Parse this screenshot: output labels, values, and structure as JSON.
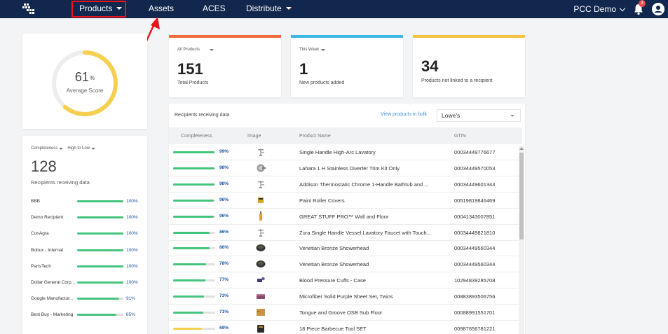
{
  "nav": {
    "items": [
      {
        "label": "Products",
        "dropdown": true
      },
      {
        "label": "Assets",
        "dropdown": false
      },
      {
        "label": "ACES",
        "dropdown": false
      },
      {
        "label": "Distribute",
        "dropdown": true
      }
    ],
    "account_label": "PCC Demo",
    "notification_count": "3",
    "colors": {
      "bar": "#12274d",
      "highlight": "#e8141a"
    }
  },
  "score": {
    "value": "61",
    "unit": "%",
    "label": "Average Score",
    "fraction": 0.61,
    "color": "#f5cf4d"
  },
  "recipients": {
    "sort_field": "Completeness",
    "sort_order": "High to Low",
    "count": "128",
    "count_label": "Recipients receiving data",
    "rows": [
      {
        "name": "BBB",
        "pct": "100%",
        "fraction": 1.0
      },
      {
        "name": "Demo Recipient",
        "pct": "100%",
        "fraction": 1.0
      },
      {
        "name": "ConAgra",
        "pct": "100%",
        "fraction": 1.0
      },
      {
        "name": "Bobux - Internal",
        "pct": "100%",
        "fraction": 1.0
      },
      {
        "name": "PartsTech",
        "pct": "100%",
        "fraction": 1.0
      },
      {
        "name": "Dollar General Corp...",
        "pct": "100%",
        "fraction": 1.0
      },
      {
        "name": "Google Manufactur...",
        "pct": "91%",
        "fraction": 0.91
      },
      {
        "name": "Best Buy - Marketing",
        "pct": "85%",
        "fraction": 0.85
      }
    ]
  },
  "stats": [
    {
      "dropdown": "All Products",
      "value": "151",
      "label": "Total Products",
      "color": "#f26b3a"
    },
    {
      "dropdown": "This Week",
      "value": "1",
      "label": "New products added",
      "color": "#3db9e6"
    },
    {
      "dropdown": "",
      "value": "34",
      "label": "Products not linked to a recipient",
      "color": "#f5c242"
    }
  ],
  "table": {
    "title": "Recipients receiving data",
    "bulk_link": "View products in bulk",
    "selected_recipient": "Lowe's",
    "columns": [
      "Completeness",
      "Image",
      "Product Name",
      "GTIN"
    ],
    "rows": [
      {
        "pct": "99%",
        "fraction": 0.99,
        "icon": "faucet-icon",
        "name": "Single Handle High-Arc Lavatory",
        "gtin": "00034449776677"
      },
      {
        "pct": "98%",
        "fraction": 0.98,
        "icon": "trim-kit-icon",
        "name": "Lahara 1 H Stainless Diverter Trim Kit Only",
        "gtin": "00034449570053"
      },
      {
        "pct": "98%",
        "fraction": 0.98,
        "icon": "faucet-icon",
        "name": "Addison Thermostatic Chrome 1-Handle Bathtub and ...",
        "gtin": "00034449601344"
      },
      {
        "pct": "96%",
        "fraction": 0.96,
        "icon": "paint-roller-icon",
        "name": "Paint Roller Covers",
        "gtin": "00519819846469"
      },
      {
        "pct": "96%",
        "fraction": 0.96,
        "icon": "adhesive-icon",
        "name": "GREAT STUFF PRO™ Wall and Floor",
        "gtin": "00041343007851"
      },
      {
        "pct": "86%",
        "fraction": 0.86,
        "icon": "faucet-icon",
        "name": "Zura Single Handle Vessel Lavatory Faucet with Touch...",
        "gtin": "00034449821810"
      },
      {
        "pct": "86%",
        "fraction": 0.86,
        "icon": "showerhead-icon",
        "name": "Venetian Bronze Showerhead",
        "gtin": "00034449560344"
      },
      {
        "pct": "78%",
        "fraction": 0.78,
        "icon": "showerhead-icon",
        "name": "Venetian Bronze Showerhead",
        "gtin": "00034449560344"
      },
      {
        "pct": "77%",
        "fraction": 0.77,
        "icon": "blood-pressure-cuff-icon",
        "name": "Blood Pressure Cuffs - Case",
        "gtin": "10294839285708"
      },
      {
        "pct": "73%",
        "fraction": 0.73,
        "icon": "sheet-set-icon",
        "name": "Microfiber Solid Purple Sheet Set, Twins",
        "gtin": "00883893506756"
      },
      {
        "pct": "71%",
        "fraction": 0.71,
        "icon": "osb-board-icon",
        "name": "Tongue and Groove OSB Sub Floor",
        "gtin": "00088991551701"
      },
      {
        "pct": "69%",
        "fraction": 0.69,
        "icon": "bbq-tool-set-icon",
        "name": "18 Piece Barbecue Tool SET",
        "gtin": "00987656781221"
      }
    ],
    "bar_colors": {
      "high": "#44c47d",
      "low": "#f5cf4d"
    }
  }
}
